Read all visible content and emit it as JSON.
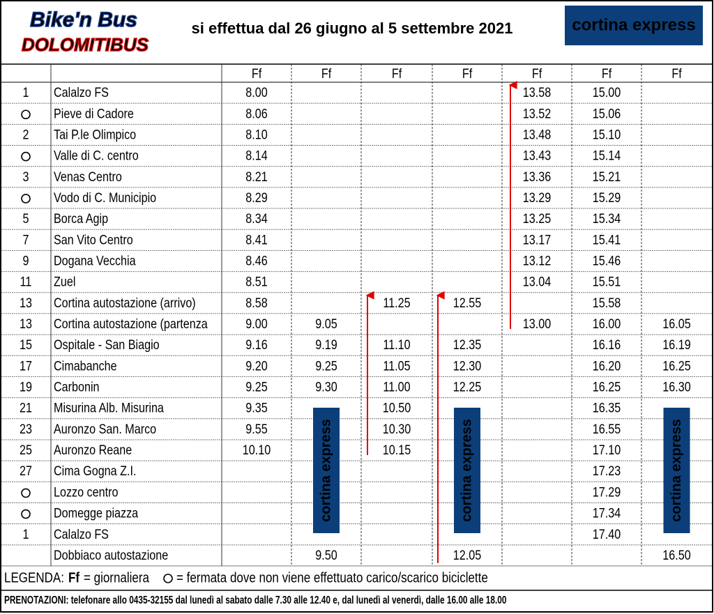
{
  "header": {
    "logo_top": "Bike'n Bus",
    "logo_bottom": "DOLOMITIBUS",
    "title": "si effettua dal 26 giugno al 5 settembre 2021",
    "brand": "cortina express"
  },
  "table": {
    "columns": [
      "Ff",
      "Ff",
      "Ff",
      "Ff",
      "Ff",
      "Ff",
      "Ff"
    ],
    "rows": [
      {
        "num": "1",
        "stop": "Calalzo FS",
        "times": [
          "8.00",
          null,
          null,
          null,
          "13.58",
          "15.00",
          null
        ]
      },
      {
        "num": null,
        "marker": "circle",
        "stop": "Pieve di Cadore",
        "times": [
          "8.06",
          null,
          null,
          null,
          "13.52",
          "15.06",
          null
        ]
      },
      {
        "num": "2",
        "stop": "Tai P.le Olimpico",
        "times": [
          "8.10",
          null,
          null,
          null,
          "13.48",
          "15.10",
          null
        ]
      },
      {
        "num": null,
        "marker": "circle",
        "stop": "Valle di C. centro",
        "times": [
          "8.14",
          null,
          null,
          null,
          "13.43",
          "15.14",
          null
        ]
      },
      {
        "num": "3",
        "stop": "Venas Centro",
        "times": [
          "8.21",
          null,
          null,
          null,
          "13.36",
          "15.21",
          null
        ]
      },
      {
        "num": null,
        "marker": "circle",
        "stop": "Vodo di C. Municipio",
        "times": [
          "8.29",
          null,
          null,
          null,
          "13.29",
          "15.29",
          null
        ]
      },
      {
        "num": "5",
        "stop": "Borca Agip",
        "times": [
          "8.34",
          null,
          null,
          null,
          "13.25",
          "15.34",
          null
        ]
      },
      {
        "num": "7",
        "stop": "San Vito Centro",
        "times": [
          "8.41",
          null,
          null,
          null,
          "13.17",
          "15.41",
          null
        ]
      },
      {
        "num": "9",
        "stop": "Dogana Vecchia",
        "times": [
          "8.46",
          null,
          null,
          null,
          "13.12",
          "15.46",
          null
        ]
      },
      {
        "num": "11",
        "stop": "Zuel",
        "times": [
          "8.51",
          null,
          null,
          null,
          "13.04",
          "15.51",
          null
        ]
      },
      {
        "num": "13",
        "stop": "Cortina autostazione (arrivo)",
        "times": [
          "8.58",
          null,
          "11.25",
          "12.55",
          null,
          "15.58",
          null
        ]
      },
      {
        "num": "13",
        "stop": "Cortina autostazione (partenza",
        "times": [
          "9.00",
          "9.05",
          null,
          null,
          "13.00",
          "16.00",
          "16.05"
        ]
      },
      {
        "num": "15",
        "stop": "Ospitale - San Biagio",
        "times": [
          "9.16",
          "9.19",
          "11.10",
          "12.35",
          null,
          "16.16",
          "16.19"
        ]
      },
      {
        "num": "17",
        "stop": "Cimabanche",
        "times": [
          "9.20",
          "9.25",
          "11.05",
          "12.30",
          null,
          "16.20",
          "16.25"
        ]
      },
      {
        "num": "19",
        "stop": "Carbonin",
        "times": [
          "9.25",
          "9.30",
          "11.00",
          "12.25",
          null,
          "16.25",
          "16.30"
        ]
      },
      {
        "num": "21",
        "stop": "Misurina Alb. Misurina",
        "times": [
          "9.35",
          null,
          "10.50",
          null,
          null,
          "16.35",
          null
        ]
      },
      {
        "num": "23",
        "stop": "Auronzo San. Marco",
        "times": [
          "9.55",
          null,
          "10.30",
          null,
          null,
          "16.55",
          null
        ]
      },
      {
        "num": "25",
        "stop": "Auronzo Reane",
        "times": [
          "10.10",
          null,
          "10.15",
          null,
          null,
          "17.10",
          null
        ]
      },
      {
        "num": "27",
        "stop": "Cima Gogna Z.I.",
        "times": [
          null,
          null,
          null,
          null,
          null,
          "17.23",
          null
        ]
      },
      {
        "num": null,
        "marker": "circle",
        "stop": "Lozzo centro",
        "times": [
          null,
          null,
          null,
          null,
          null,
          "17.29",
          null
        ]
      },
      {
        "num": null,
        "marker": "circle",
        "stop": "Domegge piazza",
        "times": [
          null,
          null,
          null,
          null,
          null,
          "17.34",
          null
        ]
      },
      {
        "num": "1",
        "stop": "Calalzo FS",
        "times": [
          null,
          null,
          null,
          null,
          null,
          "17.40",
          null
        ]
      },
      {
        "num": null,
        "stop": "Dobbiaco autostazione",
        "times": [
          null,
          "9.50",
          null,
          "12.05",
          null,
          null,
          "16.50"
        ]
      }
    ]
  },
  "side_logos": [
    "cortina express",
    "cortina express",
    "cortina express"
  ],
  "legend": {
    "label": "LEGENDA:",
    "ff": "Ff",
    "ff_text": "= giornaliera",
    "circle_text": "= fermata dove non viene effettuato carico/scarico biciclette"
  },
  "booking": "PRENOTAZIONI: telefonare allo 0435-32155 dal lunedì al sabato dalle 7.30 alle 12.40 e, dal lunedì al venerdì, dalle 16.00 alle 18.00"
}
